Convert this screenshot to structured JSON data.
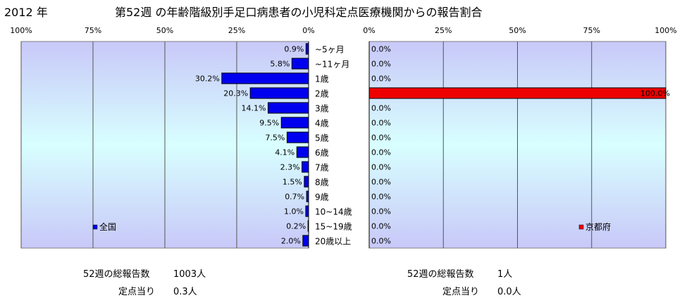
{
  "header": {
    "year": "2012 年",
    "title": "第52週 の年齢階級別手足口病患者の小児科定点医療機関からの報告割合"
  },
  "chart_data": [
    {
      "type": "bar",
      "orientation": "horizontal",
      "direction": "right-to-left",
      "categories": [
        "~5ヶ月",
        "~11ヶ月",
        "1歳",
        "2歳",
        "3歳",
        "4歳",
        "5歳",
        "6歳",
        "7歳",
        "8歳",
        "9歳",
        "10~14歳",
        "15~19歳",
        "20歳以上"
      ],
      "series": [
        {
          "name": "全国",
          "values": [
            0.9,
            5.8,
            30.2,
            20.3,
            14.1,
            9.5,
            7.5,
            4.1,
            2.3,
            1.5,
            0.7,
            1.0,
            0.2,
            2.0
          ]
        }
      ],
      "value_labels": [
        "0.9%",
        "5.8%",
        "30.2%",
        "20.3%",
        "14.1%",
        "9.5%",
        "7.5%",
        "4.1%",
        "2.3%",
        "1.5%",
        "0.7%",
        "1.0%",
        "0.2%",
        "2.0%"
      ],
      "xlim": [
        0,
        100
      ],
      "xticks": [
        "100%",
        "75%",
        "50%",
        "25%",
        "0%"
      ],
      "xtick_values": [
        100,
        75,
        50,
        25,
        0
      ],
      "legend_position": "bottom-left",
      "bar_color": "#0000ee",
      "grid": true
    },
    {
      "type": "bar",
      "orientation": "horizontal",
      "direction": "left-to-right",
      "categories": [
        "~5ヶ月",
        "~11ヶ月",
        "1歳",
        "2歳",
        "3歳",
        "4歳",
        "5歳",
        "6歳",
        "7歳",
        "8歳",
        "9歳",
        "10~14歳",
        "15~19歳",
        "20歳以上"
      ],
      "series": [
        {
          "name": "京都府",
          "values": [
            0,
            0,
            0,
            100,
            0,
            0,
            0,
            0,
            0,
            0,
            0,
            0,
            0,
            0
          ]
        }
      ],
      "value_labels": [
        "0.0%",
        "0.0%",
        "0.0%",
        "100.0%",
        "0.0%",
        "0.0%",
        "0.0%",
        "0.0%",
        "0.0%",
        "0.0%",
        "0.0%",
        "0.0%",
        "0.0%",
        "0.0%"
      ],
      "xlim": [
        0,
        100
      ],
      "xticks": [
        "0%",
        "25%",
        "50%",
        "75%",
        "100%"
      ],
      "xtick_values": [
        0,
        25,
        50,
        75,
        100
      ],
      "legend_position": "bottom-right",
      "bar_color": "#ee0000",
      "grid": true
    }
  ],
  "summary": {
    "left": {
      "total_label": "52週の総報告数",
      "total_value": "1003人",
      "per_label": "定点当り",
      "per_value": "0.3人"
    },
    "right": {
      "total_label": "52週の総報告数",
      "total_value": "1人",
      "per_label": "定点当り",
      "per_value": "0.0人"
    }
  },
  "colors": {
    "plot_top": "#c8c8f8",
    "plot_mid": "#d8ffff",
    "plot_bottom": "#c8c8f8",
    "grid": "#555555"
  }
}
